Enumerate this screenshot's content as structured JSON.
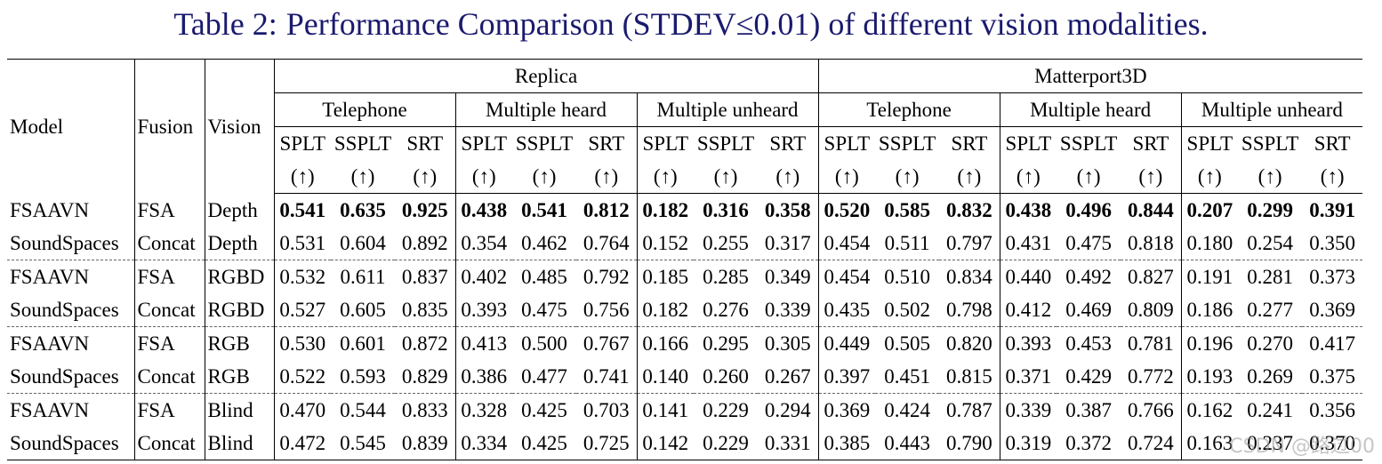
{
  "caption": {
    "label": "Table 2:",
    "text": "Performance Comparison (STDEV≤0.01) of different vision modalities."
  },
  "header": {
    "model": "Model",
    "fusion": "Fusion",
    "vision": "Vision",
    "datasets": [
      "Replica",
      "Matterport3D"
    ],
    "tasks": [
      "Telephone",
      "Multiple heard",
      "Multiple unheard"
    ],
    "metrics": [
      "SPLT",
      "SSPLT",
      "SRT"
    ],
    "arrow": "(↑)"
  },
  "rows": [
    {
      "model": "FSAAVN",
      "fusion": "FSA",
      "vision": "Depth",
      "bold": true,
      "values": [
        "0.541",
        "0.635",
        "0.925",
        "0.438",
        "0.541",
        "0.812",
        "0.182",
        "0.316",
        "0.358",
        "0.520",
        "0.585",
        "0.832",
        "0.438",
        "0.496",
        "0.844",
        "0.207",
        "0.299",
        "0.391"
      ]
    },
    {
      "model": "SoundSpaces",
      "fusion": "Concat",
      "vision": "Depth",
      "bold": false,
      "values": [
        "0.531",
        "0.604",
        "0.892",
        "0.354",
        "0.462",
        "0.764",
        "0.152",
        "0.255",
        "0.317",
        "0.454",
        "0.511",
        "0.797",
        "0.431",
        "0.475",
        "0.818",
        "0.180",
        "0.254",
        "0.350"
      ]
    },
    {
      "model": "FSAAVN",
      "fusion": "FSA",
      "vision": "RGBD",
      "bold": false,
      "values": [
        "0.532",
        "0.611",
        "0.837",
        "0.402",
        "0.485",
        "0.792",
        "0.185",
        "0.285",
        "0.349",
        "0.454",
        "0.510",
        "0.834",
        "0.440",
        "0.492",
        "0.827",
        "0.191",
        "0.281",
        "0.373"
      ]
    },
    {
      "model": "SoundSpaces",
      "fusion": "Concat",
      "vision": "RGBD",
      "bold": false,
      "values": [
        "0.527",
        "0.605",
        "0.835",
        "0.393",
        "0.475",
        "0.756",
        "0.182",
        "0.276",
        "0.339",
        "0.435",
        "0.502",
        "0.798",
        "0.412",
        "0.469",
        "0.809",
        "0.186",
        "0.277",
        "0.369"
      ]
    },
    {
      "model": "FSAAVN",
      "fusion": "FSA",
      "vision": "RGB",
      "bold": false,
      "values": [
        "0.530",
        "0.601",
        "0.872",
        "0.413",
        "0.500",
        "0.767",
        "0.166",
        "0.295",
        "0.305",
        "0.449",
        "0.505",
        "0.820",
        "0.393",
        "0.453",
        "0.781",
        "0.196",
        "0.270",
        "0.417"
      ]
    },
    {
      "model": "SoundSpaces",
      "fusion": "Concat",
      "vision": "RGB",
      "bold": false,
      "values": [
        "0.522",
        "0.593",
        "0.829",
        "0.386",
        "0.477",
        "0.741",
        "0.140",
        "0.260",
        "0.267",
        "0.397",
        "0.451",
        "0.815",
        "0.371",
        "0.429",
        "0.772",
        "0.193",
        "0.269",
        "0.375"
      ]
    },
    {
      "model": "FSAAVN",
      "fusion": "FSA",
      "vision": "Blind",
      "bold": false,
      "values": [
        "0.470",
        "0.544",
        "0.833",
        "0.328",
        "0.425",
        "0.703",
        "0.141",
        "0.229",
        "0.294",
        "0.369",
        "0.424",
        "0.787",
        "0.339",
        "0.387",
        "0.766",
        "0.162",
        "0.241",
        "0.356"
      ]
    },
    {
      "model": "SoundSpaces",
      "fusion": "Concat",
      "vision": "Blind",
      "bold": false,
      "values": [
        "0.472",
        "0.545",
        "0.839",
        "0.334",
        "0.425",
        "0.725",
        "0.142",
        "0.229",
        "0.331",
        "0.385",
        "0.443",
        "0.790",
        "0.319",
        "0.372",
        "0.724",
        "0.163",
        "0.237",
        "0.370"
      ]
    }
  ],
  "watermark": "CSDN @路过00"
}
